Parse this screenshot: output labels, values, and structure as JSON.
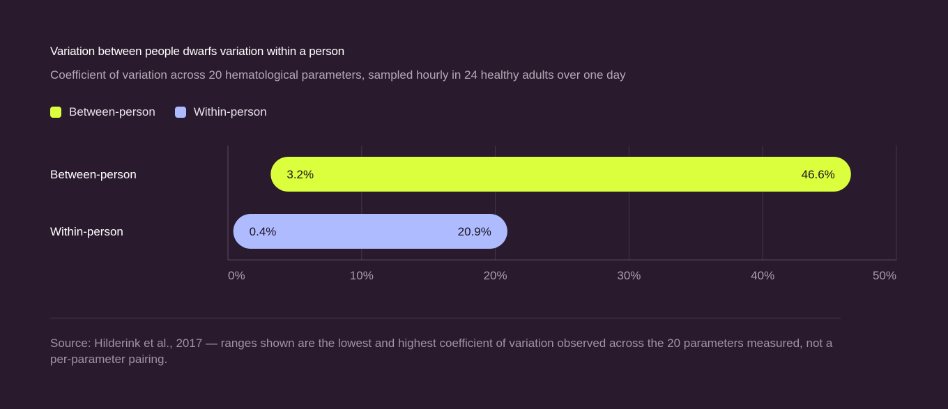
{
  "header": {
    "title": "Variation between people dwarfs variation within a person",
    "subtitle": "Coefficient of variation across 20 hematological parameters, sampled hourly in 24 healthy adults over one day"
  },
  "legend": {
    "items": [
      {
        "label": "Between-person",
        "color": "#dbff3d"
      },
      {
        "label": "Within-person",
        "color": "#aebcff"
      }
    ]
  },
  "chart_data": {
    "type": "bar",
    "orientation": "horizontal-range",
    "categories": [
      "Between-person",
      "Within-person"
    ],
    "series": [
      {
        "name": "Between-person",
        "low": 3.2,
        "high": 46.6,
        "low_label": "3.2%",
        "high_label": "46.6%",
        "color": "#dbff3d"
      },
      {
        "name": "Within-person",
        "low": 0.4,
        "high": 20.9,
        "low_label": "0.4%",
        "high_label": "20.9%",
        "color": "#aebcff"
      }
    ],
    "xlim": [
      0,
      50
    ],
    "xticks": [
      0,
      10,
      20,
      30,
      40,
      50
    ],
    "xtick_labels": [
      "0%",
      "10%",
      "20%",
      "30%",
      "40%",
      "50%"
    ],
    "grid": true,
    "legend_position": "top-left"
  },
  "footer": {
    "source": "Source: Hilderink et al., 2017 — ranges shown are the lowest and highest coefficient of variation observed across the 20 parameters measured, not a per-parameter pairing."
  }
}
